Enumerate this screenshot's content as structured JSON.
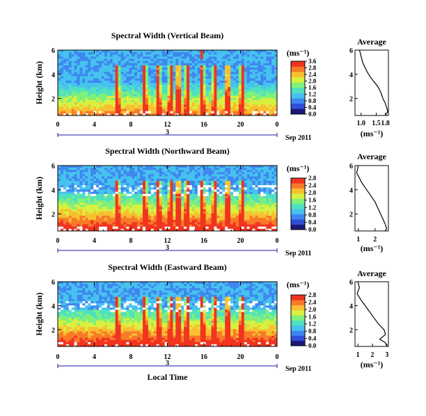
{
  "figure": {
    "x_axis_label": "Local Time",
    "colorbar_unit": "(ms⁻¹)",
    "profile_unit": "(ms⁻¹)",
    "profile_title": "Average",
    "y_axis_label": "Height (km)"
  },
  "colors": {
    "colormap": [
      "#1a1a7a",
      "#2f4fd6",
      "#3f86f0",
      "#46c2ef",
      "#4fe0c0",
      "#7ff07a",
      "#d8f040",
      "#f8c030",
      "#f87a28",
      "#f03420"
    ],
    "background": "#ffffff",
    "axis": "#000000",
    "date_axis": "#1a1aa0"
  },
  "chart_data": [
    {
      "type": "heatmap",
      "title": "Spectral Width (Vertical Beam)",
      "xlabel": "",
      "ylabel": "Height (km)",
      "xlim": [
        0,
        24
      ],
      "ylim": [
        0.6,
        6.0
      ],
      "xticks": [
        "0",
        "4",
        "8",
        "12",
        "16",
        "20",
        "0"
      ],
      "yticks": [
        "2",
        "4",
        "6"
      ],
      "date_ticks": [
        "3"
      ],
      "date_label": "Sep 2011",
      "colorbar": {
        "ticks": [
          "0.0",
          "0.4",
          "0.8",
          "1.2",
          "1.6",
          "2.0",
          "2.4",
          "2.8",
          "3.6"
        ],
        "range": [
          0,
          3.6
        ]
      },
      "profile": {
        "title": "Average",
        "xlabel": "(ms⁻¹)",
        "xticks": [
          "1.0",
          "1.5",
          "1.8"
        ],
        "xlim": [
          0.8,
          1.9
        ],
        "ylim": [
          0.6,
          6.0
        ],
        "yticks": [
          "2",
          "4",
          "6"
        ],
        "x": [
          0.95,
          1.0,
          1.05,
          1.12,
          1.2,
          1.3,
          1.42,
          1.55,
          1.65,
          1.72,
          1.8,
          1.85,
          1.88,
          1.82,
          1.8
        ],
        "y": [
          6.0,
          5.5,
          5.0,
          4.6,
          4.2,
          3.8,
          3.4,
          3.0,
          2.5,
          2.0,
          1.6,
          1.2,
          0.9,
          0.7,
          0.6
        ]
      }
    },
    {
      "type": "heatmap",
      "title": "Spectral Width (Northward Beam)",
      "xlabel": "",
      "ylabel": "Height (km)",
      "xlim": [
        0,
        24
      ],
      "ylim": [
        0.6,
        6.0
      ],
      "xticks": [
        "0",
        "4",
        "8",
        "12",
        "16",
        "20",
        "0"
      ],
      "yticks": [
        "2",
        "4",
        "6"
      ],
      "date_ticks": [
        "3"
      ],
      "date_label": "Sep 2011",
      "colorbar": {
        "ticks": [
          "0.0",
          "0.4",
          "0.8",
          "1.2",
          "1.6",
          "2.0",
          "2.4",
          "2.8"
        ],
        "range": [
          0,
          2.8
        ]
      },
      "profile": {
        "title": "Average",
        "xlabel": "(ms⁻¹)",
        "xticks": [
          "1",
          "2"
        ],
        "xlim": [
          0.8,
          2.8
        ],
        "ylim": [
          0.6,
          6.0
        ],
        "yticks": [
          "2",
          "4",
          "6"
        ],
        "x": [
          1.0,
          0.9,
          1.05,
          1.2,
          1.4,
          1.6,
          1.8,
          2.0,
          2.2,
          2.4,
          2.6,
          2.7,
          2.6
        ],
        "y": [
          6.0,
          5.4,
          5.0,
          4.6,
          4.2,
          3.8,
          3.4,
          3.0,
          2.4,
          1.8,
          1.2,
          0.8,
          0.6
        ]
      }
    },
    {
      "type": "heatmap",
      "title": "Spectral Width (Eastward Beam)",
      "xlabel": "Local Time",
      "ylabel": "Height (km)",
      "xlim": [
        0,
        24
      ],
      "ylim": [
        0.6,
        6.0
      ],
      "xticks": [
        "0",
        "4",
        "8",
        "12",
        "16",
        "20",
        "0"
      ],
      "yticks": [
        "2",
        "4",
        "6"
      ],
      "date_ticks": [
        "3"
      ],
      "date_label": "Sep 2011",
      "colorbar": {
        "ticks": [
          "0.0",
          "0.4",
          "0.8",
          "1.2",
          "1.6",
          "2.0",
          "2.4",
          "2.8"
        ],
        "range": [
          0,
          2.8
        ]
      },
      "profile": {
        "title": "Average",
        "xlabel": "(ms⁻¹)",
        "xticks": [
          "1",
          "2",
          "3"
        ],
        "xlim": [
          0.8,
          3.1
        ],
        "ylim": [
          0.6,
          6.0
        ],
        "yticks": [
          "2",
          "4",
          "6"
        ],
        "x": [
          1.0,
          1.1,
          0.95,
          1.2,
          1.5,
          1.8,
          2.1,
          2.4,
          2.8,
          2.9,
          2.5,
          2.9,
          3.0
        ],
        "y": [
          6.0,
          5.5,
          5.0,
          4.5,
          4.0,
          3.5,
          3.0,
          2.5,
          2.0,
          1.6,
          1.2,
          0.9,
          0.6
        ]
      }
    }
  ]
}
